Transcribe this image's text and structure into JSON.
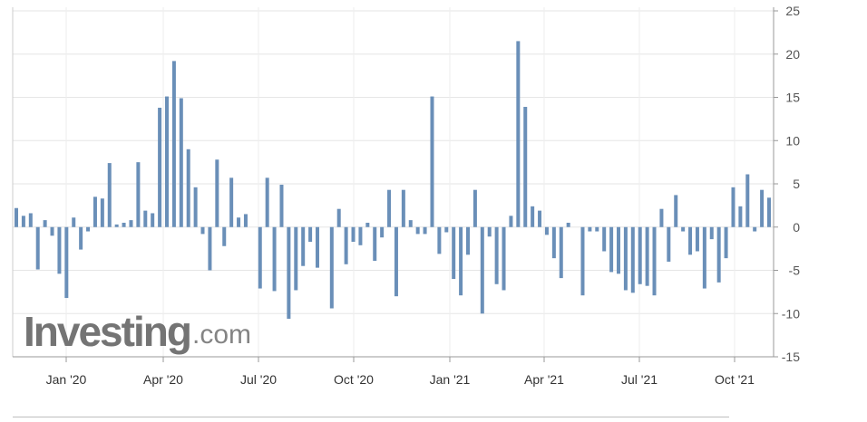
{
  "watermark": {
    "main": "Investing",
    "suffix": ".com"
  },
  "chart_data": {
    "type": "bar",
    "ylim": [
      -15,
      25
    ],
    "y_ticks": [
      -15,
      -10,
      -5,
      0,
      5,
      10,
      15,
      20,
      25
    ],
    "y_axis_position": "right",
    "grid": true,
    "x_ticks": [
      "Jan '20",
      "Apr '20",
      "Jul '20",
      "Oct '20",
      "Jan '21",
      "Apr '21",
      "Jul '21",
      "Oct '21"
    ],
    "bar_color": "#6a8fb8",
    "values": [
      2.2,
      1.3,
      1.6,
      -4.9,
      0.8,
      -1.0,
      -5.4,
      -8.2,
      1.1,
      -2.6,
      -0.5,
      3.5,
      3.3,
      7.4,
      0.3,
      0.5,
      0.8,
      7.5,
      1.9,
      1.6,
      13.8,
      15.1,
      19.2,
      14.9,
      9.0,
      4.6,
      -0.8,
      -5.0,
      7.8,
      -2.2,
      5.7,
      1.1,
      1.5,
      0.0,
      -7.1,
      5.7,
      -7.4,
      4.9,
      -10.6,
      -7.3,
      -4.5,
      -1.7,
      -4.7,
      0.0,
      -9.4,
      2.1,
      -4.3,
      -1.7,
      -2.1,
      0.5,
      -3.9,
      -1.2,
      4.3,
      -8.0,
      4.3,
      0.8,
      -0.8,
      -0.8,
      15.1,
      -3.1,
      -0.6,
      -6.0,
      -7.9,
      -3.2,
      4.3,
      -10.0,
      -1.1,
      -6.6,
      -7.3,
      1.3,
      21.5,
      13.9,
      2.4,
      1.9,
      -0.9,
      -3.6,
      -5.9,
      0.5,
      0.0,
      -7.9,
      -0.5,
      -0.5,
      -2.8,
      -5.2,
      -5.4,
      -7.3,
      -7.6,
      -6.6,
      -6.8,
      -7.9,
      2.1,
      -4.0,
      3.7,
      -0.5,
      -3.2,
      -2.8,
      -7.1,
      -1.4,
      -6.4,
      -3.6,
      4.6,
      2.4,
      6.1,
      -0.5,
      4.3,
      3.4
    ]
  }
}
